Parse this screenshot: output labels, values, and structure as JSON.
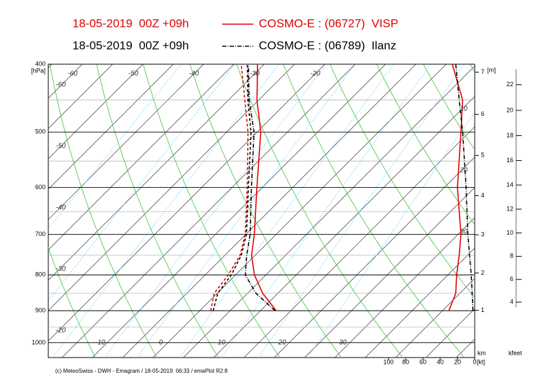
{
  "chart_data": {
    "type": "emagram",
    "run": "18-05-2019  00Z +09h",
    "soundings": [
      {
        "name": "COSMO-E : (06727)  VISP",
        "color": "#e00000",
        "dash": "solid",
        "pressure": [
          900,
          850,
          800,
          750,
          700,
          600,
          500,
          450,
          400
        ],
        "temperature": [
          12.6,
          7.5,
          3.1,
          -0.6,
          -3.6,
          -10.9,
          -19.4,
          -25.3,
          -31.1
        ],
        "dewpoint": [
          1.8,
          -0.5,
          -1.2,
          -2.5,
          -5.1,
          -12.5,
          -21.5,
          -27.3,
          -33.8
        ],
        "wind_speed": [
          30,
          22,
          21,
          18,
          16,
          20,
          16,
          14,
          26
        ]
      },
      {
        "name": "COSMO-E : (06789)  Ilanz",
        "color": "#000000",
        "dash": "dashdot",
        "pressure": [
          900,
          850,
          800,
          750,
          700,
          600,
          500,
          450,
          400
        ],
        "temperature": [
          12.4,
          6.4,
          1.6,
          -1.4,
          -4.3,
          -11.8,
          -20.5,
          -26.6,
          -32.6
        ],
        "dewpoint": [
          2.2,
          0.1,
          -0.7,
          -2.3,
          -4.9,
          -12.3,
          -21.0,
          -26.8,
          -32.8
        ],
        "wind_speed": [
          2,
          3,
          4,
          6,
          8,
          10,
          14,
          18,
          22
        ]
      }
    ],
    "log_y": true,
    "ylim": [
      1050,
      400
    ],
    "yticks": [
      400,
      500,
      600,
      700,
      800,
      900,
      1000
    ],
    "y_unit": "[hPa]",
    "xlim": [
      -19.7,
      50.6
    ],
    "xticks": [
      -10,
      0,
      10,
      20,
      30
    ],
    "isotherm_labels": [
      -60,
      -50,
      -40,
      -30,
      -20
    ],
    "adiabat_labels": [
      -60,
      -50,
      -40,
      -30,
      -20
    ],
    "theta_labels": [
      10,
      20,
      30
    ],
    "wind_xlim": [
      100,
      0
    ],
    "wind_xticks": [
      100,
      80,
      60,
      40,
      20,
      0
    ],
    "wind_unit": "[kt]",
    "km_ticks": [
      1,
      2,
      3,
      4,
      5,
      6,
      7
    ],
    "km_unit": "km",
    "m_unit": "[m]",
    "kfeet_ticks": [
      4,
      6,
      8,
      10,
      12,
      14,
      16,
      18,
      20,
      22
    ],
    "kfeet_unit": "kfeet",
    "footer": "(c) MeteoSwiss - DWH - Emagram / 18-05-2019  06:33 / emaPlot R2.8"
  }
}
